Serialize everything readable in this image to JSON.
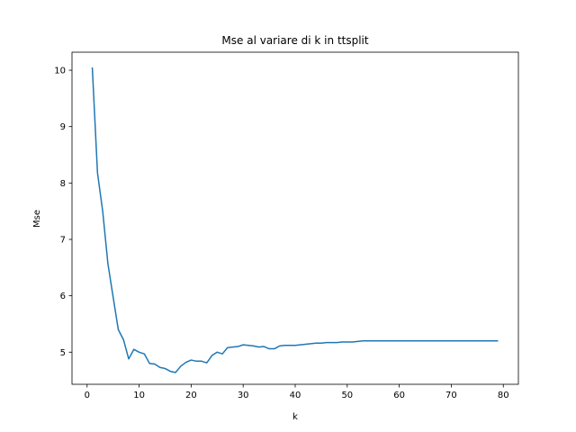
{
  "chart_data": {
    "type": "line",
    "title": "Mse al variare di k in ttsplit",
    "xlabel": "k",
    "ylabel": "Mse",
    "xlim": [
      -2.9,
      82.9
    ],
    "ylim": [
      4.43,
      10.32
    ],
    "xticks": [
      0,
      10,
      20,
      30,
      40,
      50,
      60,
      70,
      80
    ],
    "yticks": [
      5,
      6,
      7,
      8,
      9,
      10
    ],
    "grid": false,
    "legend": "none",
    "line_color": "#1f77b4",
    "series": [
      {
        "x": [
          1,
          2,
          3,
          4,
          5,
          6,
          7,
          8,
          9,
          10,
          11,
          12,
          13,
          14,
          15,
          16,
          17,
          18,
          19,
          20,
          21,
          22,
          23,
          24,
          25,
          26,
          27,
          28,
          29,
          30,
          31,
          32,
          33,
          34,
          35,
          36,
          37,
          38,
          39,
          40,
          41,
          42,
          43,
          44,
          45,
          46,
          47,
          48,
          49,
          50,
          51,
          52,
          53,
          54,
          55,
          56,
          57,
          58,
          59,
          60,
          61,
          62,
          63,
          64,
          65,
          66,
          67,
          68,
          69,
          70,
          71,
          72,
          73,
          74,
          75,
          76,
          77,
          78,
          79
        ],
        "values": [
          10.05,
          8.18,
          7.5,
          6.57,
          5.98,
          5.4,
          5.22,
          4.88,
          5.05,
          5.0,
          4.97,
          4.8,
          4.79,
          4.73,
          4.71,
          4.66,
          4.64,
          4.75,
          4.82,
          4.86,
          4.84,
          4.84,
          4.81,
          4.94,
          5.0,
          4.97,
          5.08,
          5.09,
          5.1,
          5.13,
          5.12,
          5.11,
          5.09,
          5.1,
          5.06,
          5.06,
          5.11,
          5.12,
          5.12,
          5.12,
          5.13,
          5.14,
          5.15,
          5.16,
          5.16,
          5.17,
          5.17,
          5.17,
          5.18,
          5.18,
          5.18,
          5.19,
          5.2,
          5.2,
          5.2,
          5.2,
          5.2,
          5.2,
          5.2,
          5.2,
          5.2,
          5.2,
          5.2,
          5.2,
          5.2,
          5.2,
          5.2,
          5.2,
          5.2,
          5.2,
          5.2,
          5.2,
          5.2,
          5.2,
          5.2,
          5.2,
          5.2,
          5.2,
          5.2
        ]
      }
    ]
  }
}
